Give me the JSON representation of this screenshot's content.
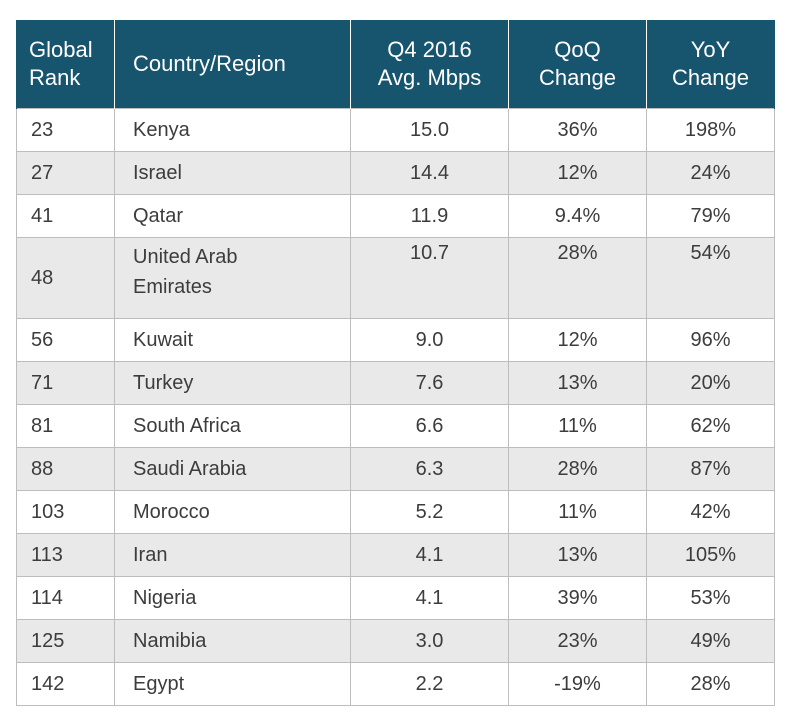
{
  "table": {
    "headers": {
      "rank_line1": "Global",
      "rank_line2": "Rank",
      "country": "Country/Region",
      "mbps_line1": "Q4 2016",
      "mbps_line2": "Avg. Mbps",
      "qoq_line1": "QoQ",
      "qoq_line2": "Change",
      "yoy_line1": "YoY",
      "yoy_line2": "Change"
    },
    "rows": [
      {
        "rank": "23",
        "country": "Kenya",
        "mbps": "15.0",
        "qoq": "36%",
        "yoy": "198%"
      },
      {
        "rank": "27",
        "country": "Israel",
        "mbps": "14.4",
        "qoq": "12%",
        "yoy": "24%"
      },
      {
        "rank": "41",
        "country": "Qatar",
        "mbps": "11.9",
        "qoq": "9.4%",
        "yoy": "79%"
      },
      {
        "rank": "48",
        "country_line1": "United Arab",
        "country_line2": "Emirates",
        "mbps": "10.7",
        "qoq": "28%",
        "yoy": "54%"
      },
      {
        "rank": "56",
        "country": "Kuwait",
        "mbps": "9.0",
        "qoq": "12%",
        "yoy": "96%"
      },
      {
        "rank": "71",
        "country": "Turkey",
        "mbps": "7.6",
        "qoq": "13%",
        "yoy": "20%"
      },
      {
        "rank": "81",
        "country": "South Africa",
        "mbps": "6.6",
        "qoq": "11%",
        "yoy": "62%"
      },
      {
        "rank": "88",
        "country": "Saudi Arabia",
        "mbps": "6.3",
        "qoq": "28%",
        "yoy": "87%"
      },
      {
        "rank": "103",
        "country": "Morocco",
        "mbps": "5.2",
        "qoq": "11%",
        "yoy": "42%"
      },
      {
        "rank": "113",
        "country": "Iran",
        "mbps": "4.1",
        "qoq": "13%",
        "yoy": "105%"
      },
      {
        "rank": "114",
        "country": "Nigeria",
        "mbps": "4.1",
        "qoq": "39%",
        "yoy": "53%"
      },
      {
        "rank": "125",
        "country": "Namibia",
        "mbps": "3.0",
        "qoq": "23%",
        "yoy": "49%"
      },
      {
        "rank": "142",
        "country": "Egypt",
        "mbps": "2.2",
        "qoq": "-19%",
        "yoy": "28%"
      }
    ]
  },
  "colors": {
    "header_bg": "#17546e",
    "header_text": "#ffffff",
    "stripe": "#e9e9e9",
    "grid": "#bdbdbd"
  }
}
